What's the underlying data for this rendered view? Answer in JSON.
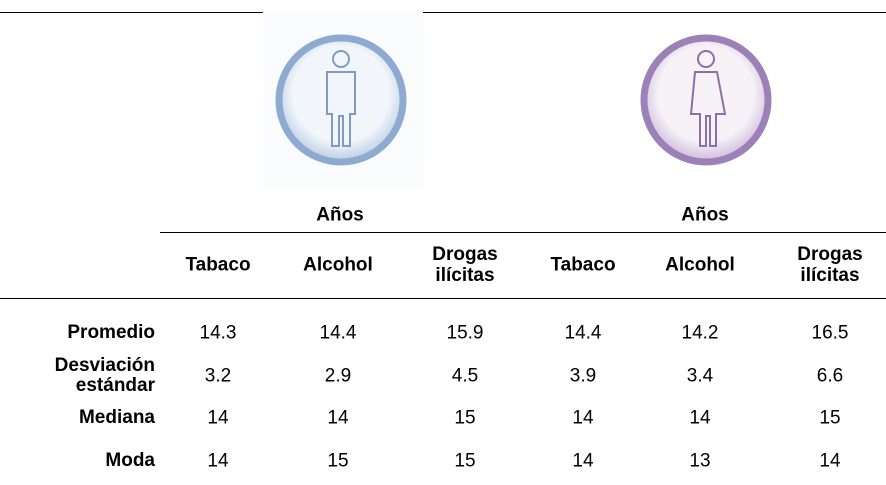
{
  "table": {
    "groups": [
      {
        "label": "Años",
        "columns": [
          "Tabaco",
          "Alcohol",
          "Drogas ilícitas"
        ]
      },
      {
        "label": "Años",
        "columns": [
          "Tabaco",
          "Alcohol",
          "Drogas ilícitas"
        ]
      }
    ],
    "rows": [
      {
        "label": "Promedio",
        "values": [
          14.3,
          14.4,
          15.9,
          14.4,
          14.2,
          16.5
        ]
      },
      {
        "label": "Desviación estándar",
        "values": [
          3.2,
          2.9,
          4.5,
          3.9,
          3.4,
          6.6
        ]
      },
      {
        "label": "Mediana",
        "values": [
          14,
          14,
          15,
          14,
          14,
          15
        ]
      },
      {
        "label": "Moda",
        "values": [
          14,
          15,
          15,
          14,
          13,
          14
        ]
      }
    ]
  }
}
